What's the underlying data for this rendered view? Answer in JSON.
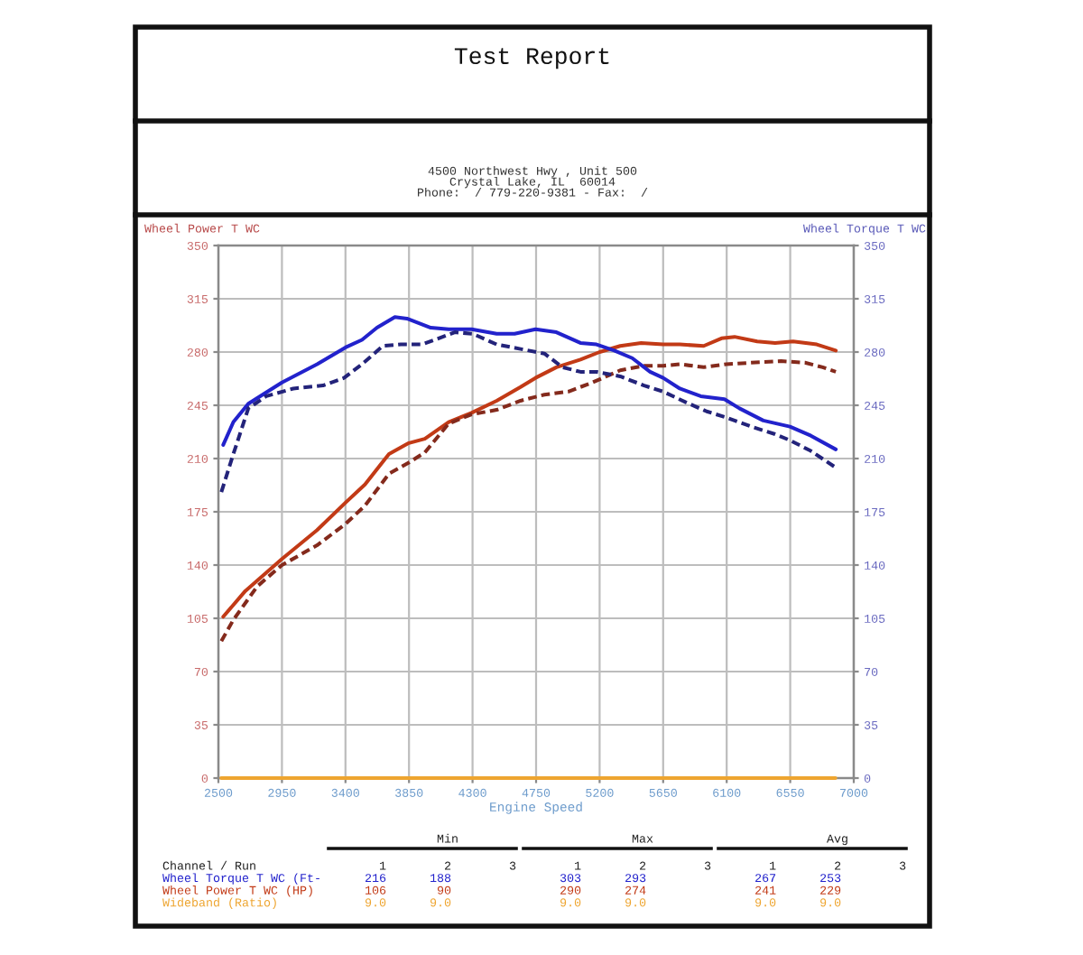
{
  "chart_data": {
    "type": "line",
    "title": "Test Report",
    "subtitle": "4500 Northwest Hwy , Unit 500\nCrystal Lake, IL  60014\nPhone:  / 779-220-9381 - Fax:  /",
    "xlabel": "Engine Speed",
    "ylabel": "Wheel Power T WC",
    "y2label": "Wheel Torque T WC",
    "xlim": [
      2500,
      7000
    ],
    "xticks": [
      2500,
      2950,
      3400,
      3850,
      4300,
      4750,
      5200,
      5650,
      6100,
      6550,
      7000
    ],
    "ylim": [
      0,
      350
    ],
    "yticks": [
      0,
      35,
      70,
      105,
      140,
      175,
      210,
      245,
      280,
      315,
      350
    ],
    "y2lim": [
      0,
      350
    ],
    "y2ticks": [
      0,
      35,
      70,
      105,
      140,
      175,
      210,
      245,
      280,
      315,
      350
    ],
    "grid": true,
    "series": [
      {
        "color": "#2222cc",
        "axis": "y2",
        "x": [
          2534,
          2606,
          2712,
          2950,
          3199,
          3400,
          3517,
          3623,
          3750,
          3835,
          4004,
          4131,
          4293,
          4471,
          4598,
          4746,
          4894,
          5064,
          5178,
          5304,
          5431,
          5557,
          5650,
          5768,
          5916,
          6084,
          6190,
          6359,
          6548,
          6696,
          6873
        ],
        "values": [
          219,
          234,
          246,
          260,
          272,
          283,
          288,
          296,
          303,
          302,
          296,
          295,
          295,
          292,
          292,
          295,
          293,
          286,
          285,
          281,
          276,
          267,
          263,
          256,
          251,
          249,
          243,
          235,
          231,
          225,
          216
        ]
      },
      {
        "color": "#23237a",
        "axis": "y2",
        "line_style": "dashed",
        "x": [
          2521,
          2606,
          2712,
          2839,
          3030,
          3241,
          3390,
          3517,
          3665,
          3792,
          3941,
          4089,
          4174,
          4301,
          4471,
          4640,
          4809,
          4937,
          5064,
          5178,
          5346,
          5515,
          5650,
          5810,
          5958,
          6097,
          6274,
          6443,
          6548,
          6696,
          6873
        ],
        "values": [
          188,
          213,
          243,
          251,
          256,
          258,
          263,
          272,
          284,
          285,
          285,
          290,
          293,
          292,
          285,
          282,
          279,
          270,
          267,
          267,
          264,
          258,
          254,
          247,
          241,
          237,
          231,
          226,
          222,
          215,
          204
        ]
      },
      {
        "color": "#c23a16",
        "x": [
          2534,
          2691,
          2950,
          3199,
          3400,
          3538,
          3708,
          3843,
          3962,
          4131,
          4293,
          4471,
          4640,
          4746,
          4894,
          5064,
          5200,
          5346,
          5494,
          5650,
          5768,
          5937,
          6063,
          6156,
          6316,
          6443,
          6570,
          6738,
          6873
        ],
        "values": [
          106,
          123,
          144,
          163,
          181,
          193,
          213,
          220,
          223,
          234,
          240,
          248,
          257,
          263,
          270,
          275,
          280,
          284,
          286,
          285,
          285,
          284,
          289,
          290,
          287,
          286,
          287,
          285,
          281
        ]
      },
      {
        "color": "#842a1c",
        "line_style": "dashed",
        "x": [
          2521,
          2606,
          2775,
          2950,
          3199,
          3400,
          3538,
          3708,
          3843,
          3962,
          4131,
          4293,
          4471,
          4640,
          4809,
          4979,
          5149,
          5346,
          5515,
          5650,
          5768,
          5937,
          6097,
          6274,
          6485,
          6654,
          6780,
          6873
        ],
        "values": [
          90,
          104,
          126,
          140,
          153,
          167,
          179,
          200,
          207,
          214,
          233,
          239,
          242,
          248,
          252,
          254,
          260,
          268,
          271,
          271,
          272,
          270,
          272,
          273,
          274,
          273,
          270,
          267
        ]
      },
      {
        "color": "#eea530",
        "x": [
          2520,
          6870
        ],
        "values": [
          0,
          0
        ]
      }
    ],
    "annotations": [
      "Min",
      "Max",
      "Avg",
      "Channel / Run                 1        2        3        1        2        3        1        2        3",
      "Wheel Torque T WC (Ft-      216      188               303      293               267      253",
      "Wheel Power T WC (HP)       106       90               290      274               241      229",
      "Wideband (Ratio)            9.0      9.0               9.0      9.0               9.0      9.0"
    ]
  }
}
